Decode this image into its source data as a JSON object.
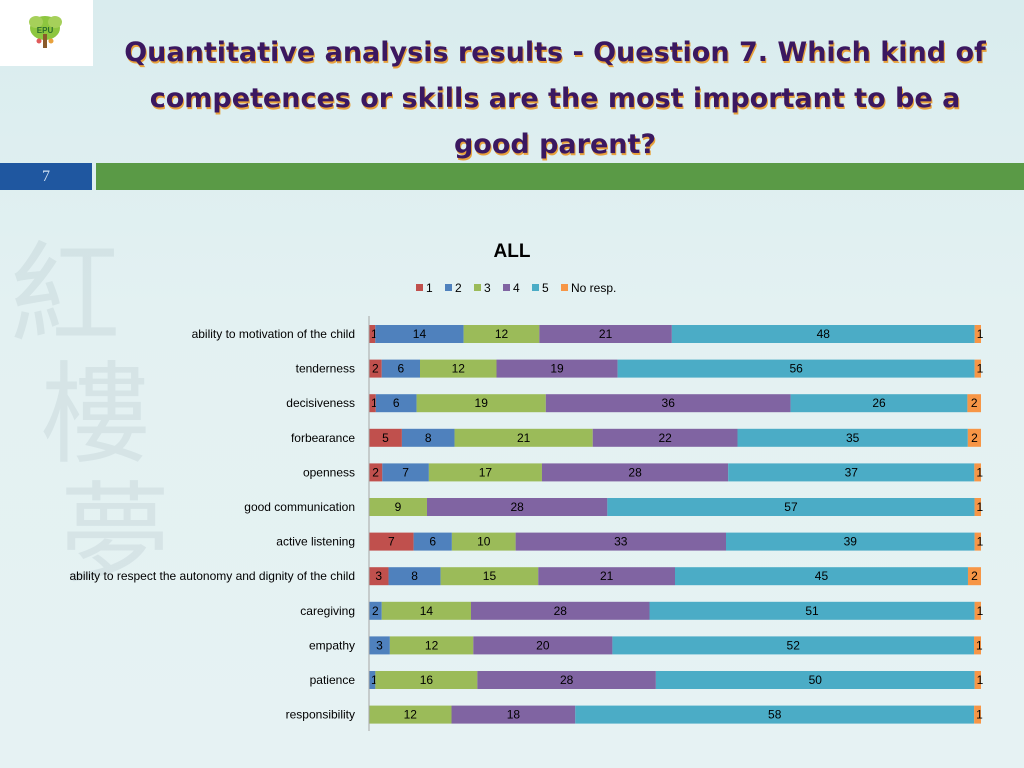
{
  "slide": {
    "title": "Quantitative analysis results - Question 7. Which kind of competences or skills are the most important to be a good parent?",
    "page_number": "7",
    "logo_text": "EPU"
  },
  "colors": {
    "1": "#c0504d",
    "2": "#4f81bd",
    "3": "#9bbb59",
    "4": "#8064a2",
    "5": "#4bacc6",
    "No resp.": "#f79646",
    "title_text": "#3b1860",
    "band_blue": "#1f57a0",
    "band_green": "#5a9a46"
  },
  "chart_data": {
    "type": "bar",
    "orientation": "horizontal",
    "stacked": true,
    "title": "ALL",
    "legend_placement": "top",
    "grid": false,
    "categories": [
      "ability to motivation of the child",
      "tenderness",
      "decisiveness",
      "forbearance",
      "openness",
      "good communication",
      "active listening",
      "ability to respect the autonomy and dignity of the child",
      "caregiving",
      "empathy",
      "patience",
      "responsibility"
    ],
    "series": [
      {
        "name": "1",
        "values": [
          1,
          2,
          1,
          5,
          2,
          0,
          7,
          3,
          0,
          0,
          0,
          0
        ]
      },
      {
        "name": "2",
        "values": [
          14,
          6,
          6,
          8,
          7,
          0,
          6,
          8,
          2,
          3,
          1,
          0
        ]
      },
      {
        "name": "3",
        "values": [
          12,
          12,
          19,
          21,
          17,
          9,
          10,
          15,
          14,
          12,
          16,
          12
        ]
      },
      {
        "name": "4",
        "values": [
          21,
          19,
          36,
          22,
          28,
          28,
          33,
          21,
          28,
          20,
          28,
          18
        ]
      },
      {
        "name": "5",
        "values": [
          48,
          56,
          26,
          35,
          37,
          57,
          39,
          45,
          51,
          52,
          50,
          58
        ]
      },
      {
        "name": "No resp.",
        "values": [
          1,
          1,
          2,
          2,
          1,
          1,
          1,
          2,
          1,
          1,
          1,
          1
        ]
      }
    ]
  }
}
